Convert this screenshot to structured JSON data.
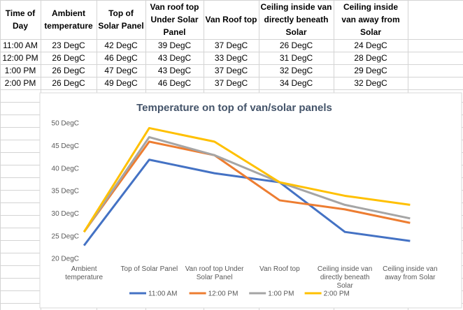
{
  "table": {
    "header": [
      "Time of Day",
      "Ambient temperature",
      "Top of Solar Panel",
      "Van roof top Under Solar Panel",
      "Van Roof top",
      "Ceiling inside van directly beneath Solar",
      "Ceiling inside van away from Solar"
    ],
    "rows": [
      [
        "11:00 AM",
        "23 DegC",
        "42 DegC",
        "39 DegC",
        "37 DegC",
        "26 DegC",
        "24 DegC"
      ],
      [
        "12:00 PM",
        "26 DegC",
        "46 DegC",
        "43 DegC",
        "33 DegC",
        "31 DegC",
        "28 DegC"
      ],
      [
        "1:00 PM",
        "26 DegC",
        "47 DegC",
        "43 DegC",
        "37 DegC",
        "32 DegC",
        "29 DegC"
      ],
      [
        "2:00 PM",
        "26 DegC",
        "49 DegC",
        "46 DegC",
        "37 DegC",
        "34 DegC",
        "32 DegC"
      ]
    ]
  },
  "chart_data": {
    "type": "line",
    "title": "Temperature on top of van/solar panels",
    "categories": [
      "Ambient temperature",
      "Top of Solar Panel",
      "Van roof top Under Solar Panel",
      "Van Roof top",
      "Ceiling inside van directly beneath Solar",
      "Ceiling inside van away from Solar"
    ],
    "series": [
      {
        "name": "11:00 AM",
        "color": "#4472c4",
        "values": [
          23,
          42,
          39,
          37,
          26,
          24
        ]
      },
      {
        "name": "12:00 PM",
        "color": "#ed7d31",
        "values": [
          26,
          46,
          43,
          33,
          31,
          28
        ]
      },
      {
        "name": "1:00 PM",
        "color": "#a5a5a5",
        "values": [
          26,
          47,
          43,
          37,
          32,
          29
        ]
      },
      {
        "name": "2:00 PM",
        "color": "#ffc000",
        "values": [
          26,
          49,
          46,
          37,
          34,
          32
        ]
      }
    ],
    "ylim": [
      20,
      50
    ],
    "yticks": [
      {
        "value": 20,
        "label": "20 DegC"
      },
      {
        "value": 25,
        "label": "25 DegC"
      },
      {
        "value": 30,
        "label": "30 DegC"
      },
      {
        "value": 35,
        "label": "35 DegC"
      },
      {
        "value": 40,
        "label": "40 DegC"
      },
      {
        "value": 45,
        "label": "45 DegC"
      },
      {
        "value": 50,
        "label": "50 DegC"
      }
    ],
    "grid": false,
    "legend": "bottom"
  }
}
